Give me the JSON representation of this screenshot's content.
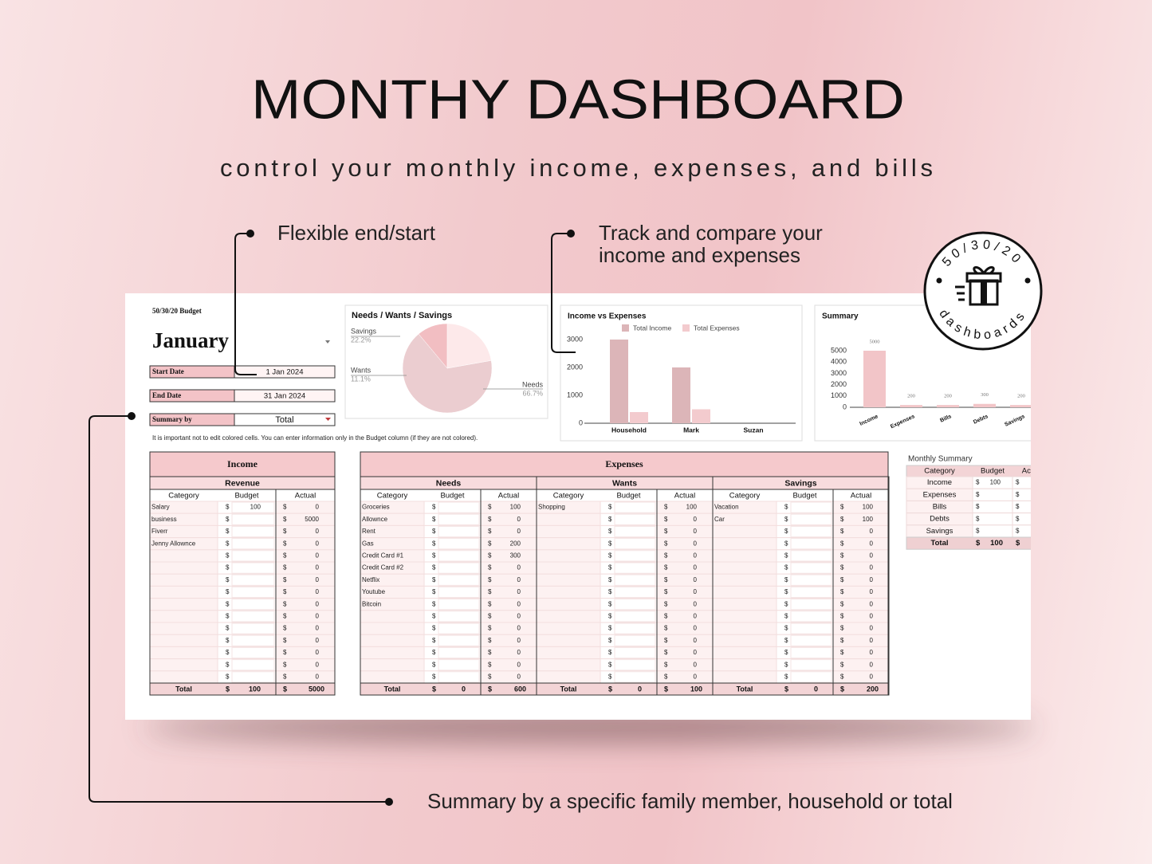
{
  "header": {
    "title": "MONTHY DASHBOARD",
    "subtitle": "control your monthly income, expenses, and bills"
  },
  "callouts": {
    "dates": "Flexible end/start",
    "charts": [
      "Track and compare your",
      "income and expenses"
    ],
    "summary": "Summary by a specific family member, household or total"
  },
  "badge": {
    "top": "50/30/20",
    "bottom": "dashboards"
  },
  "sheet": {
    "label": "50/30/20 Budget",
    "month": "January",
    "fields": [
      {
        "label": "Start Date",
        "value": "1 Jan 2024"
      },
      {
        "label": "End Date",
        "value": "31 Jan 2024"
      },
      {
        "label": "Summary by",
        "value": "Total"
      }
    ],
    "note": "It is important not to edit colored cells. You can enter information only in the Budget column (if they are not colored)."
  },
  "currency": "$",
  "chart_data": [
    {
      "type": "pie",
      "title": "Needs / Wants / Savings",
      "categories": [
        "Needs",
        "Wants",
        "Savings"
      ],
      "values": [
        66.7,
        11.1,
        22.2
      ],
      "value_labels": [
        "66.7%",
        "11.1%",
        "22.2%"
      ],
      "colors": [
        "#ebcdd0",
        "#f2bec2",
        "#fde9ea"
      ]
    },
    {
      "type": "bar",
      "title": "Income vs Expenses",
      "categories": [
        "Household",
        "Mark",
        "Suzan"
      ],
      "series": [
        {
          "name": "Total Income",
          "color": "#dcb5b8",
          "values": [
            3000,
            2000,
            0
          ]
        },
        {
          "name": "Total Expenses",
          "color": "#f3cbce",
          "values": [
            400,
            500,
            0
          ]
        }
      ],
      "ylim": [
        0,
        3000
      ],
      "yticks": [
        0,
        1000,
        2000,
        3000
      ]
    },
    {
      "type": "bar",
      "title": "Summary",
      "categories": [
        "Income",
        "Expenses",
        "Bills",
        "Debts",
        "Savings"
      ],
      "values": [
        5000,
        200,
        200,
        300,
        200
      ],
      "color": "#f2c5c8",
      "ylim": [
        0,
        5000
      ],
      "yticks": [
        0,
        1000,
        2000,
        3000,
        4000,
        5000
      ],
      "data_labels": true
    }
  ],
  "income": {
    "title": "Income",
    "section": "Revenue",
    "columns": [
      "Category",
      "Budget",
      "Actual"
    ],
    "total_label": "Total",
    "categories": [
      "Salary",
      "business",
      "Fiverr",
      "Jenny Allownce",
      null,
      null,
      null,
      null,
      null,
      null,
      null,
      null,
      null,
      null,
      null
    ],
    "budget": [
      100,
      null,
      null,
      null,
      null,
      null,
      null,
      null,
      null,
      null,
      null,
      null,
      null,
      null,
      null
    ],
    "actual": [
      0,
      5000,
      0,
      0,
      0,
      0,
      0,
      0,
      0,
      0,
      0,
      0,
      0,
      0,
      0
    ],
    "total": {
      "budget": 100,
      "actual": 5000
    }
  },
  "expenses": {
    "title": "Expenses",
    "columns": [
      "Category",
      "Budget",
      "Actual"
    ],
    "total_label": "Total",
    "sections": [
      {
        "name": "Needs",
        "categories": [
          "Groceries",
          "Allownce",
          "Rent",
          "Gas",
          "Credit Card #1",
          "Credit Card #2",
          "Netflix",
          "Youtube",
          "Bitcoin",
          null,
          null,
          null,
          null,
          null,
          null
        ],
        "actual": [
          100,
          0,
          0,
          200,
          300,
          0,
          0,
          0,
          0,
          0,
          0,
          0,
          0,
          0,
          0
        ],
        "total": {
          "budget": 0,
          "actual": 600
        }
      },
      {
        "name": "Wants",
        "categories": [
          "Shopping",
          null,
          null,
          null,
          null,
          null,
          null,
          null,
          null,
          null,
          null,
          null,
          null,
          null,
          null
        ],
        "actual": [
          100,
          0,
          0,
          0,
          0,
          0,
          0,
          0,
          0,
          0,
          0,
          0,
          0,
          0,
          0
        ],
        "total": {
          "budget": 0,
          "actual": 100
        }
      },
      {
        "name": "Savings",
        "categories": [
          "Vacation",
          "Car",
          null,
          null,
          null,
          null,
          null,
          null,
          null,
          null,
          null,
          null,
          null,
          null,
          null
        ],
        "actual": [
          100,
          100,
          0,
          0,
          0,
          0,
          0,
          0,
          0,
          0,
          0,
          0,
          0,
          0,
          0
        ],
        "total": {
          "budget": 0,
          "actual": 200
        }
      }
    ]
  },
  "monthly_summary": {
    "title": "Monthly Summary",
    "columns": [
      "Category",
      "Budget",
      "Actual"
    ],
    "total_label": "Total",
    "categories": [
      "Income",
      "Expenses",
      "Bills",
      "Debts",
      "Savings"
    ],
    "budget": [
      100,
      null,
      null,
      null,
      null
    ],
    "total_budget": 100
  }
}
